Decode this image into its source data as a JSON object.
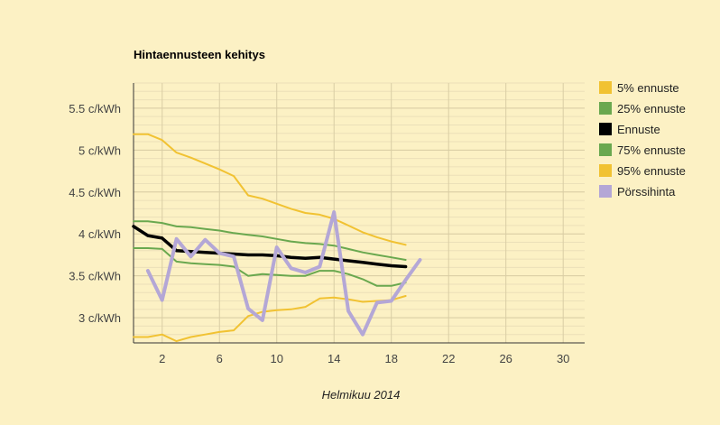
{
  "chart_data": {
    "type": "line",
    "title": "Hintaennusteen kehitys",
    "xlabel": "Helmikuu 2014",
    "ylabel": "",
    "xlim": [
      0,
      31.5
    ],
    "ylim": [
      2.7,
      5.8
    ],
    "x_ticks": [
      2,
      6,
      10,
      14,
      18,
      22,
      26,
      30
    ],
    "y_ticks": [
      3,
      3.5,
      4,
      4.5,
      5,
      5.5
    ],
    "y_tick_labels": [
      "3 c/kWh",
      "3.5 c/kWh",
      "4 c/kWh",
      "4.5 c/kWh",
      "5 c/kWh",
      "5.5 c/kWh"
    ],
    "grid": true,
    "legend_position": "right",
    "series": [
      {
        "name": "5% ennuste",
        "color": "#f1c232",
        "x": [
          0,
          1,
          2,
          3,
          4,
          5,
          6,
          7,
          8,
          9,
          10,
          11,
          12,
          13,
          14,
          15,
          16,
          17,
          18,
          19
        ],
        "values": [
          5.19,
          5.19,
          5.12,
          4.97,
          4.91,
          4.84,
          4.77,
          4.69,
          4.46,
          4.42,
          4.36,
          4.3,
          4.25,
          4.23,
          4.18,
          4.1,
          4.02,
          3.96,
          3.91,
          3.87
        ]
      },
      {
        "name": "25% ennuste",
        "color": "#6aa84f",
        "x": [
          0,
          1,
          2,
          3,
          4,
          5,
          6,
          7,
          8,
          9,
          10,
          11,
          12,
          13,
          14,
          15,
          16,
          17,
          18,
          19
        ],
        "values": [
          4.15,
          4.15,
          4.13,
          4.09,
          4.08,
          4.06,
          4.04,
          4.01,
          3.99,
          3.97,
          3.94,
          3.91,
          3.89,
          3.88,
          3.86,
          3.82,
          3.78,
          3.75,
          3.72,
          3.69
        ]
      },
      {
        "name": "Ennuste",
        "color": "#000000",
        "x": [
          0,
          1,
          2,
          3,
          4,
          5,
          6,
          7,
          8,
          9,
          10,
          11,
          12,
          13,
          14,
          15,
          16,
          17,
          18,
          19
        ],
        "values": [
          4.09,
          3.98,
          3.95,
          3.8,
          3.79,
          3.78,
          3.77,
          3.76,
          3.75,
          3.75,
          3.74,
          3.72,
          3.71,
          3.72,
          3.7,
          3.68,
          3.66,
          3.64,
          3.62,
          3.61
        ]
      },
      {
        "name": "75% ennuste",
        "color": "#6aa84f",
        "x": [
          0,
          1,
          2,
          3,
          4,
          5,
          6,
          7,
          8,
          9,
          10,
          11,
          12,
          13,
          14,
          15,
          16,
          17,
          18,
          19
        ],
        "values": [
          3.83,
          3.83,
          3.82,
          3.67,
          3.65,
          3.64,
          3.63,
          3.61,
          3.5,
          3.52,
          3.51,
          3.5,
          3.5,
          3.56,
          3.56,
          3.52,
          3.46,
          3.38,
          3.38,
          3.42
        ]
      },
      {
        "name": "95% ennuste",
        "color": "#f1c232",
        "x": [
          0,
          1,
          2,
          3,
          4,
          5,
          6,
          7,
          8,
          9,
          10,
          11,
          12,
          13,
          14,
          15,
          16,
          17,
          18,
          19
        ],
        "values": [
          2.77,
          2.77,
          2.8,
          2.72,
          2.77,
          2.8,
          2.83,
          2.85,
          3.02,
          3.07,
          3.09,
          3.1,
          3.13,
          3.23,
          3.24,
          3.22,
          3.19,
          3.2,
          3.21,
          3.26
        ]
      },
      {
        "name": "Pörssihinta",
        "color": "#b4a7d6",
        "x": [
          1,
          2,
          3,
          4,
          5,
          6,
          7,
          8,
          9,
          10,
          11,
          12,
          13,
          14,
          15,
          16,
          17,
          18,
          19,
          20
        ],
        "values": [
          3.56,
          3.21,
          3.94,
          3.73,
          3.93,
          3.77,
          3.73,
          3.11,
          2.97,
          3.84,
          3.59,
          3.54,
          3.61,
          4.26,
          3.08,
          2.8,
          3.18,
          3.2,
          3.45,
          3.69
        ]
      }
    ]
  }
}
